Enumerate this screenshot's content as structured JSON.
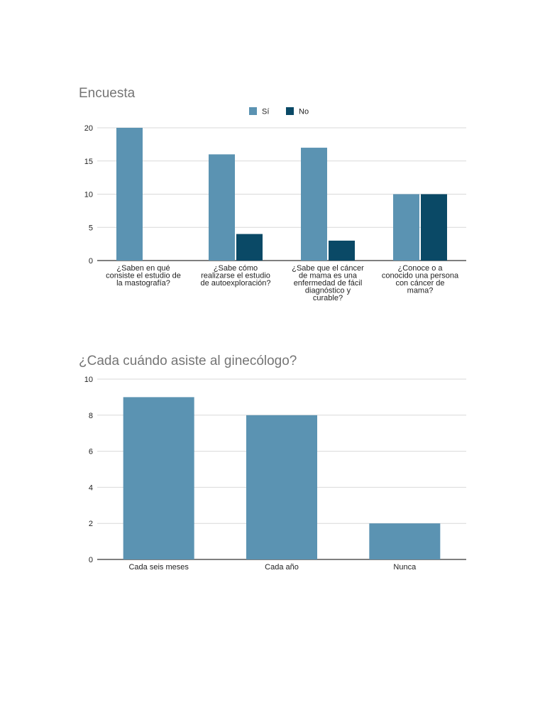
{
  "chart_data": [
    {
      "type": "bar",
      "title": "Encuesta",
      "categories": [
        [
          "¿Saben en qué",
          "consiste el estudio de",
          "la mastografía?"
        ],
        [
          "¿Sabe cómo",
          "realizarse el estudio",
          "de autoexploración?"
        ],
        [
          "¿Sabe que el cáncer",
          "de mama es una",
          "enfermedad de fácil",
          "diagnóstico y",
          "curable?"
        ],
        [
          "¿Conoce o a",
          "conocido una persona",
          "con cáncer de",
          "mama?"
        ]
      ],
      "series": [
        {
          "name": "Sí",
          "color": "#5b93b2",
          "values": [
            20,
            16,
            17,
            10
          ]
        },
        {
          "name": "No",
          "color": "#0a4966",
          "values": [
            0,
            4,
            3,
            10
          ]
        }
      ],
      "ylim": [
        0,
        20
      ],
      "yticks": [
        0,
        5,
        10,
        15,
        20
      ],
      "grid": true,
      "legend": "top-center"
    },
    {
      "type": "bar",
      "title": "¿Cada cuándo asiste al ginecólogo?",
      "categories": [
        "Cada seis meses",
        "Cada año",
        "Nunca"
      ],
      "series": [
        {
          "name": "",
          "color": "#5b93b2",
          "values": [
            9,
            8,
            2
          ]
        }
      ],
      "ylim": [
        0,
        10
      ],
      "yticks": [
        0,
        2,
        4,
        6,
        8,
        10
      ],
      "grid": true,
      "legend": "none"
    }
  ]
}
